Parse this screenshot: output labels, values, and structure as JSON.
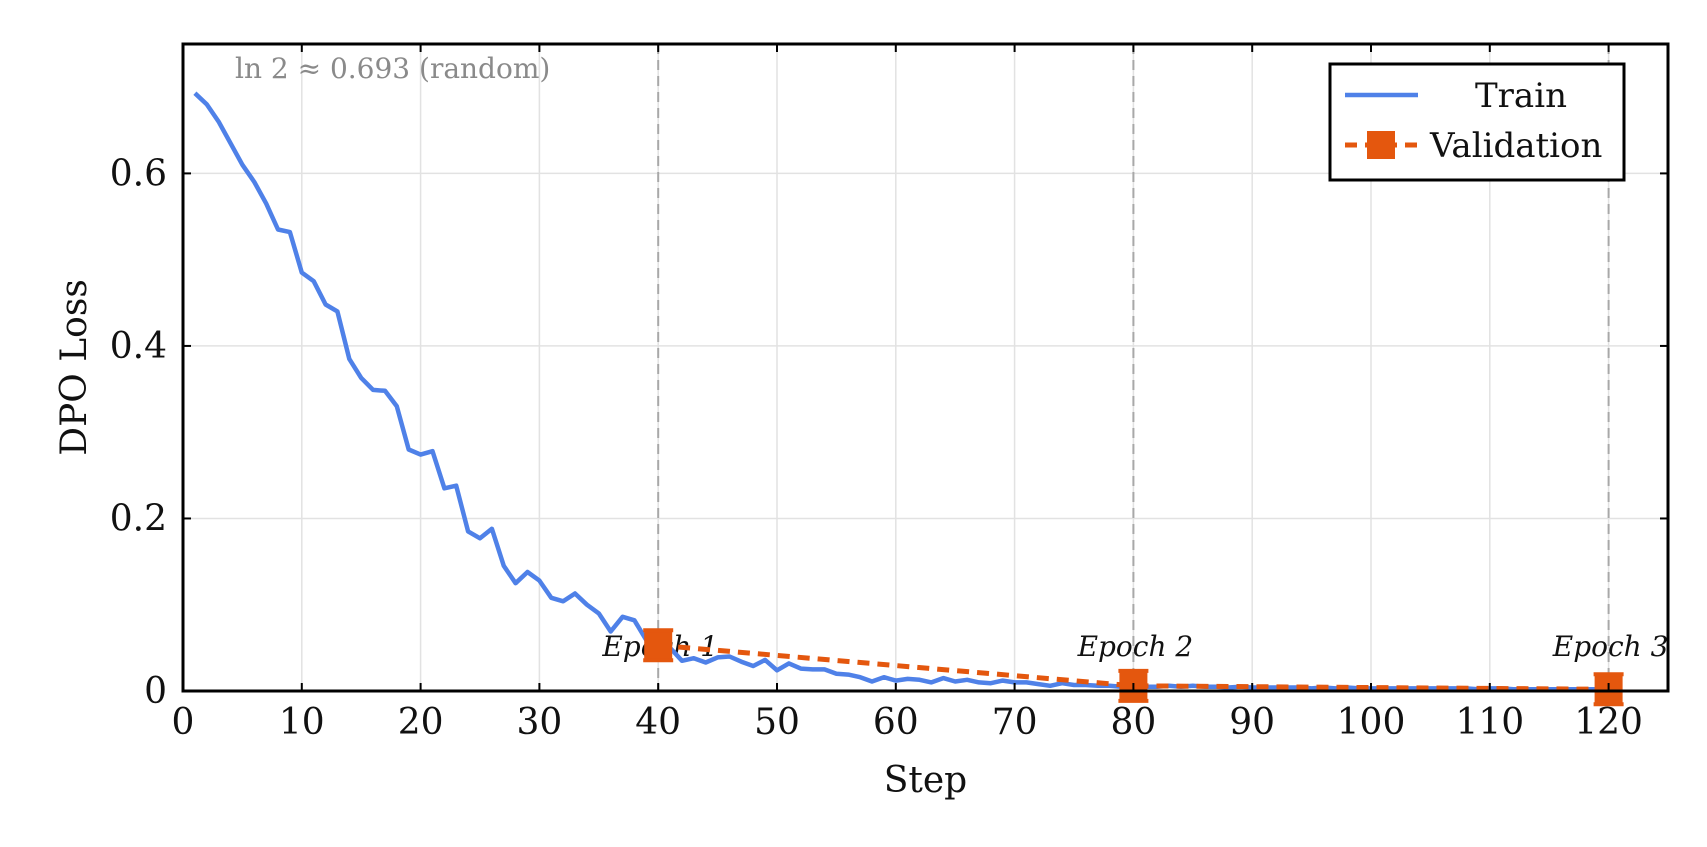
{
  "chart_data": {
    "type": "line",
    "xlabel": "Step",
    "ylabel": "DPO Loss",
    "xlim": [
      0,
      125
    ],
    "ylim": [
      0,
      0.75
    ],
    "xticks": [
      0,
      10,
      20,
      30,
      40,
      50,
      60,
      70,
      80,
      90,
      100,
      110,
      120
    ],
    "yticks": [
      0,
      0.2,
      0.4,
      0.6
    ],
    "xtick_labels": [
      "0",
      "10",
      "20",
      "30",
      "40",
      "50",
      "60",
      "70",
      "80",
      "90",
      "100",
      "110",
      "120"
    ],
    "ytick_labels": [
      "0",
      "0.2",
      "0.4",
      "0.6"
    ],
    "grid": true,
    "legend_position": "top-right",
    "annotation": "ln 2 ≈ 0.693 (random)",
    "epoch_lines": [
      {
        "x": 40,
        "label": "Epoch 1"
      },
      {
        "x": 80,
        "label": "Epoch 2"
      },
      {
        "x": 120,
        "label": "Epoch 3"
      }
    ],
    "series": [
      {
        "name": "Train",
        "color": "#4f81e8",
        "style": "solid",
        "x": [
          1,
          2,
          3,
          4,
          5,
          6,
          7,
          8,
          9,
          10,
          11,
          12,
          13,
          14,
          15,
          16,
          17,
          18,
          19,
          20,
          21,
          22,
          23,
          24,
          25,
          26,
          27,
          28,
          29,
          30,
          31,
          32,
          33,
          34,
          35,
          36,
          37,
          38,
          39,
          40,
          41,
          42,
          43,
          44,
          45,
          46,
          47,
          48,
          49,
          50,
          51,
          52,
          53,
          54,
          55,
          56,
          57,
          58,
          59,
          60,
          61,
          62,
          63,
          64,
          65,
          66,
          67,
          68,
          69,
          70,
          71,
          72,
          73,
          74,
          75,
          76,
          77,
          78,
          79,
          80,
          81,
          82,
          83,
          84,
          85,
          86,
          87,
          88,
          89,
          90,
          91,
          92,
          93,
          94,
          95,
          96,
          97,
          98,
          99,
          100,
          101,
          102,
          103,
          104,
          105,
          106,
          107,
          108,
          109,
          110,
          111,
          112,
          113,
          114,
          115,
          116,
          117,
          118,
          119,
          120
        ],
        "y": [
          0.693,
          0.68,
          0.66,
          0.635,
          0.61,
          0.59,
          0.565,
          0.535,
          0.532,
          0.485,
          0.475,
          0.448,
          0.44,
          0.385,
          0.363,
          0.349,
          0.348,
          0.33,
          0.28,
          0.274,
          0.278,
          0.235,
          0.238,
          0.185,
          0.177,
          0.188,
          0.145,
          0.125,
          0.138,
          0.128,
          0.108,
          0.104,
          0.113,
          0.1,
          0.09,
          0.069,
          0.086,
          0.082,
          0.059,
          0.057,
          0.05,
          0.035,
          0.038,
          0.033,
          0.039,
          0.04,
          0.034,
          0.029,
          0.036,
          0.024,
          0.032,
          0.026,
          0.025,
          0.025,
          0.02,
          0.019,
          0.016,
          0.011,
          0.016,
          0.012,
          0.014,
          0.013,
          0.01,
          0.015,
          0.011,
          0.013,
          0.01,
          0.009,
          0.012,
          0.01,
          0.01,
          0.008,
          0.006,
          0.009,
          0.007,
          0.007,
          0.006,
          0.006,
          0.005,
          0.005,
          0.005,
          0.005,
          0.006,
          0.005,
          0.006,
          0.005,
          0.005,
          0.004,
          0.005,
          0.004,
          0.004,
          0.004,
          0.004,
          0.004,
          0.003,
          0.004,
          0.003,
          0.004,
          0.003,
          0.003,
          0.003,
          0.003,
          0.003,
          0.003,
          0.003,
          0.003,
          0.003,
          0.003,
          0.002,
          0.003,
          0.003,
          0.002,
          0.002,
          0.002,
          0.002,
          0.002,
          0.002,
          0.002,
          0.002,
          0.002
        ]
      },
      {
        "name": "Validation",
        "color": "#e4570e",
        "style": "dashed",
        "marker": "square",
        "x": [
          40,
          80,
          120
        ],
        "y": [
          0.053,
          0.006,
          0.002
        ]
      }
    ]
  }
}
